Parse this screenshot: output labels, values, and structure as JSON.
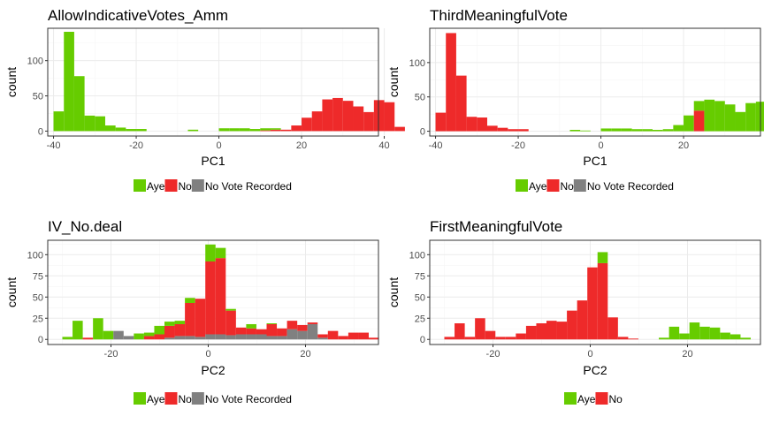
{
  "chart_data": [
    {
      "type": "histogram",
      "title": "AllowIndicativeVotes_Amm",
      "xlabel": "PC1",
      "ylabel": "count",
      "xlim": [
        -41.4,
        38.6
      ],
      "ylim": [
        -7,
        146
      ],
      "x_ticks": [
        -40,
        -20,
        0,
        20,
        40
      ],
      "y_ticks": [
        0,
        50,
        100
      ],
      "bin_width": 2.5,
      "first_bin_start": -40,
      "series": [
        {
          "name": "No",
          "color": "#ee2a2a",
          "values": [
            0,
            0,
            0,
            0,
            0,
            0,
            0,
            0,
            0,
            0,
            0,
            0,
            0,
            0,
            0,
            0,
            0,
            0,
            0,
            0,
            1,
            2,
            2,
            8,
            19,
            28,
            45,
            47,
            43,
            35,
            27,
            44,
            41,
            6,
            0
          ]
        },
        {
          "name": "No Vote Recorded",
          "color": "#808080",
          "values": [
            0,
            0,
            0,
            0,
            0,
            0,
            0,
            0,
            0,
            0,
            0,
            0,
            0,
            0,
            0,
            0,
            0,
            0,
            0,
            0,
            0,
            0,
            0,
            0,
            0,
            0,
            0,
            0,
            0,
            0,
            0,
            0,
            0,
            0,
            0
          ]
        },
        {
          "name": "Aye",
          "color": "#66cc00",
          "values": [
            28,
            141,
            78,
            22,
            21,
            8,
            5,
            3,
            3,
            0,
            0,
            0,
            0,
            2,
            0,
            0,
            4,
            4,
            4,
            3,
            3,
            2,
            0,
            0,
            0,
            0,
            0,
            0,
            0,
            0,
            0,
            0,
            0,
            0,
            0
          ]
        }
      ],
      "legend": {
        "position": "bottom",
        "items": [
          "Aye",
          "No",
          "No Vote Recorded"
        ]
      }
    },
    {
      "type": "histogram",
      "title": "ThirdMeaningfulVote",
      "xlabel": "PC1",
      "ylabel": "count",
      "xlim": [
        -41.4,
        38.6
      ],
      "ylim": [
        -7,
        150
      ],
      "x_ticks": [
        -40,
        -20,
        0,
        20
      ],
      "y_ticks": [
        0,
        50,
        100
      ],
      "bin_width": 2.5,
      "first_bin_start": -40,
      "series": [
        {
          "name": "No",
          "color": "#ee2a2a",
          "values": [
            27,
            143,
            81,
            21,
            20,
            8,
            5,
            3,
            3,
            0,
            0,
            0,
            0,
            0,
            0,
            0,
            0,
            0,
            0,
            0,
            0,
            0,
            0,
            0,
            0,
            30,
            0,
            0,
            0,
            0,
            0,
            0,
            0,
            0,
            0
          ]
        },
        {
          "name": "No Vote Recorded",
          "color": "#808080",
          "values": [
            0,
            0,
            0,
            0,
            0,
            0,
            0,
            0,
            0,
            0,
            0,
            0,
            0,
            0,
            0,
            0,
            0,
            0,
            0,
            0,
            0,
            0,
            0,
            0,
            0,
            0,
            0,
            0,
            0,
            0,
            0,
            0,
            0,
            0,
            0
          ]
        },
        {
          "name": "Aye",
          "color": "#66cc00",
          "values": [
            0,
            0,
            0,
            0,
            0,
            0,
            0,
            0,
            0,
            0,
            0,
            0,
            0,
            2,
            1,
            0,
            4,
            4,
            4,
            3,
            3,
            2,
            3,
            9,
            23,
            14,
            46,
            44,
            39,
            28,
            41,
            43,
            8,
            0,
            0
          ]
        }
      ],
      "legend": {
        "position": "bottom",
        "items": [
          "Aye",
          "No",
          "No Vote Recorded"
        ]
      }
    },
    {
      "type": "histogram",
      "title": "IV_No.deal",
      "xlabel": "PC2",
      "ylabel": "count",
      "xlim": [
        -33,
        35
      ],
      "ylim": [
        -6,
        117
      ],
      "x_ticks": [
        -20,
        0,
        20
      ],
      "y_ticks": [
        0,
        25,
        50,
        75,
        100
      ],
      "bin_width": 2.1,
      "first_bin_start": -30,
      "series": [
        {
          "name": "No Vote Recorded",
          "color": "#808080",
          "values": [
            0,
            0,
            0,
            0,
            0,
            10,
            4,
            0,
            0,
            0,
            2,
            4,
            4,
            3,
            6,
            6,
            5,
            6,
            6,
            6,
            4,
            4,
            12,
            10,
            18,
            2,
            0,
            0,
            0,
            0,
            0
          ]
        },
        {
          "name": "No",
          "color": "#ee2a2a",
          "values": [
            0,
            0,
            2,
            0,
            0,
            0,
            0,
            0,
            4,
            6,
            14,
            14,
            39,
            45,
            86,
            90,
            29,
            8,
            7,
            6,
            14,
            9,
            10,
            7,
            2,
            4,
            10,
            4,
            8,
            8,
            2
          ]
        },
        {
          "name": "Aye",
          "color": "#66cc00",
          "values": [
            3,
            22,
            0,
            25,
            10,
            0,
            0,
            7,
            4,
            10,
            5,
            4,
            6,
            0,
            20,
            12,
            2,
            0,
            5,
            0,
            1,
            0,
            0,
            0,
            0,
            0,
            0,
            0,
            0,
            0,
            0
          ]
        }
      ],
      "legend": {
        "position": "bottom",
        "items": [
          "Aye",
          "No",
          "No Vote Recorded"
        ]
      }
    },
    {
      "type": "histogram",
      "title": "FirstMeaningfulVote",
      "xlabel": "PC2",
      "ylabel": "count",
      "xlim": [
        -33,
        35
      ],
      "ylim": [
        -6,
        117
      ],
      "x_ticks": [
        -20,
        0,
        20
      ],
      "y_ticks": [
        0,
        25,
        50,
        75,
        100
      ],
      "bin_width": 2.1,
      "first_bin_start": -30,
      "series": [
        {
          "name": "No",
          "color": "#ee2a2a",
          "values": [
            3,
            19,
            3,
            25,
            10,
            3,
            3,
            7,
            16,
            19,
            22,
            21,
            34,
            46,
            85,
            90,
            26,
            3,
            1,
            0,
            0,
            0,
            0,
            0,
            0,
            0,
            0,
            0,
            0,
            0,
            0
          ]
        },
        {
          "name": "Aye",
          "color": "#66cc00",
          "values": [
            0,
            0,
            0,
            0,
            0,
            0,
            0,
            0,
            0,
            0,
            0,
            0,
            0,
            0,
            0,
            13,
            0,
            0,
            0,
            0,
            0,
            2,
            15,
            7,
            20,
            15,
            14,
            8,
            6,
            2,
            0
          ]
        }
      ],
      "legend": {
        "position": "bottom",
        "items": [
          "Aye",
          "No"
        ]
      }
    }
  ]
}
